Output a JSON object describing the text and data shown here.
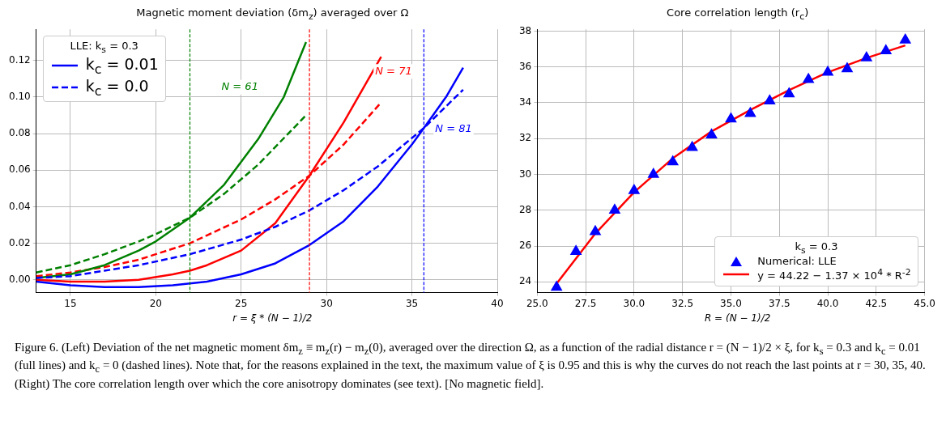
{
  "chart_data": [
    {
      "type": "line",
      "title": "Magnetic moment deviation (δm$_{z}$) averaged over Ω",
      "xlabel": "r = ξ * (N − 1)/2",
      "legend_title": "LLE: k$_{s}$ = 0.3",
      "legend": "top left",
      "grid": true,
      "marker": "none",
      "xlim": [
        13,
        40
      ],
      "xticks": [
        15,
        20,
        25,
        30,
        35,
        40
      ],
      "ylim": [
        -0.007,
        0.137
      ],
      "yticks": [
        {
          "value": 0,
          "label": "0.00"
        },
        {
          "value": 0.02,
          "label": "0.02"
        },
        {
          "value": 0.04,
          "label": "0.04"
        },
        {
          "value": 0.06,
          "label": "0.06"
        },
        {
          "value": 0.08,
          "label": "0.08"
        },
        {
          "value": 0.1,
          "label": "0.10"
        },
        {
          "value": 0.12,
          "label": "0.12"
        }
      ],
      "series": [
        {
          "name": "k$_{c}$ = 0.01",
          "color": "#0000ff",
          "line_style": "solid",
          "x": [
            13,
            15,
            17,
            19,
            21,
            23,
            25,
            27,
            29,
            31,
            33,
            35,
            35.7,
            37,
            38
          ],
          "values": [
            -0.001,
            -0.003,
            -0.004,
            -0.004,
            -0.003,
            -0.001,
            0.003,
            0.009,
            0.019,
            0.032,
            0.051,
            0.074,
            0.083,
            0.1,
            0.116
          ]
        },
        {
          "name": "k$_{c}$ = 0.0",
          "color": "#0000ff",
          "line_style": "dashed",
          "x": [
            13,
            15,
            17,
            19,
            22,
            25,
            27,
            29,
            31,
            33,
            35.7,
            38
          ],
          "values": [
            0.001,
            0.002,
            0.005,
            0.008,
            0.014,
            0.022,
            0.029,
            0.038,
            0.049,
            0.062,
            0.083,
            0.104
          ]
        },
        {
          "color": "#008000",
          "line_style": "solid",
          "x": [
            13,
            15,
            17,
            19,
            20,
            22,
            24,
            26,
            27.5,
            28.8
          ],
          "values": [
            0.001,
            0.003,
            0.008,
            0.016,
            0.021,
            0.034,
            0.052,
            0.077,
            0.1,
            0.13
          ]
        },
        {
          "color": "#008000",
          "line_style": "dashed",
          "x": [
            13,
            15,
            17,
            19,
            20,
            22,
            24,
            26,
            28.8
          ],
          "values": [
            0.004,
            0.008,
            0.014,
            0.021,
            0.025,
            0.034,
            0.047,
            0.063,
            0.09
          ]
        },
        {
          "color": "#ff0000",
          "line_style": "solid",
          "x": [
            13,
            15,
            17,
            19,
            21,
            22,
            23,
            25,
            27,
            29,
            31,
            33.2
          ],
          "values": [
            0,
            -0.001,
            -0.001,
            0,
            0.003,
            0.005,
            0.008,
            0.016,
            0.031,
            0.057,
            0.086,
            0.122
          ]
        },
        {
          "color": "#ff0000",
          "line_style": "dashed",
          "x": [
            13,
            15,
            17,
            19,
            22,
            25,
            27,
            29,
            31,
            33.2
          ],
          "values": [
            0.002,
            0.004,
            0.007,
            0.011,
            0.02,
            0.033,
            0.044,
            0.057,
            0.074,
            0.097
          ]
        }
      ],
      "ref_lines": [
        {
          "axis": "x",
          "value": 22,
          "color": "#008000",
          "line_style": "dashed"
        },
        {
          "axis": "x",
          "value": 29,
          "color": "#ff0000",
          "line_style": "dashed"
        },
        {
          "axis": "x",
          "value": 35.7,
          "color": "#0000ff",
          "line_style": "dashed"
        }
      ],
      "annotations": [
        "N = 61",
        "N = 71",
        "N = 81",
        "Figure 6. (Left) Deviation of the net magnetic moment δm$_{z}$ ≡ m$_{z}$(r) − m$_{z}$(0), averaged over the direction Ω, as a function of the radial distance r = (N − 1)/2 × ξ, for k$_{s}$ = 0.3 and k$_{c}$ = 0.01 (full lines) and k$_{c}$ = 0 (dashed lines). Note that, for the reasons explained in the text, the maximum value of ξ is 0.95 and this is why the curves do not reach the last points at r = 30, 35, 40. (Right) The core correlation length over which the core anisotropy dominates (see text). [No magnetic field]."
      ]
    },
    {
      "type": "scatter",
      "title": "Core correlation length (r$_{c}$)",
      "xlabel": "R = (N − 1)/2",
      "legend_title": "k$_{s}$ = 0.3",
      "legend": "bottom right",
      "grid": true,
      "xlim": [
        25,
        45
      ],
      "xticks": [
        {
          "value": 25,
          "label": "25.0"
        },
        {
          "value": 27.5,
          "label": "27.5"
        },
        {
          "value": 30,
          "label": "30.0"
        },
        {
          "value": 32.5,
          "label": "32.5"
        },
        {
          "value": 35,
          "label": "35.0"
        },
        {
          "value": 37.5,
          "label": "37.5"
        },
        {
          "value": 40,
          "label": "40.0"
        },
        {
          "value": 42.5,
          "label": "42.5"
        },
        {
          "value": 45,
          "label": "45.0"
        }
      ],
      "ylim": [
        23.4,
        38.1
      ],
      "yticks": [
        24,
        26,
        28,
        30,
        32,
        34,
        36,
        38
      ],
      "series": [
        {
          "name": "Numerical: LLE",
          "marker": "triangle",
          "color": "#0000ff",
          "x": [
            26,
            27,
            28,
            29,
            30,
            31,
            32,
            33,
            34,
            35,
            36,
            37,
            38,
            39,
            40,
            41,
            42,
            43,
            44
          ],
          "values": [
            23.7,
            25.7,
            26.8,
            28.0,
            29.1,
            30.0,
            30.7,
            31.5,
            32.2,
            33.1,
            33.4,
            34.1,
            34.5,
            35.3,
            35.7,
            35.9,
            36.5,
            36.9,
            37.5
          ]
        },
        {
          "name": "y = 44.22 − 1.37 × 10$^{4}$ * R$^{-2}$",
          "type": "line",
          "marker": "none",
          "line_style": "solid",
          "color": "#ff0000",
          "x": [
            26,
            28,
            30,
            32,
            34,
            36,
            38,
            40,
            42,
            44
          ],
          "values": [
            23.9,
            26.7,
            29.0,
            30.9,
            32.4,
            33.6,
            34.7,
            35.7,
            36.5,
            37.2
          ]
        }
      ]
    }
  ]
}
